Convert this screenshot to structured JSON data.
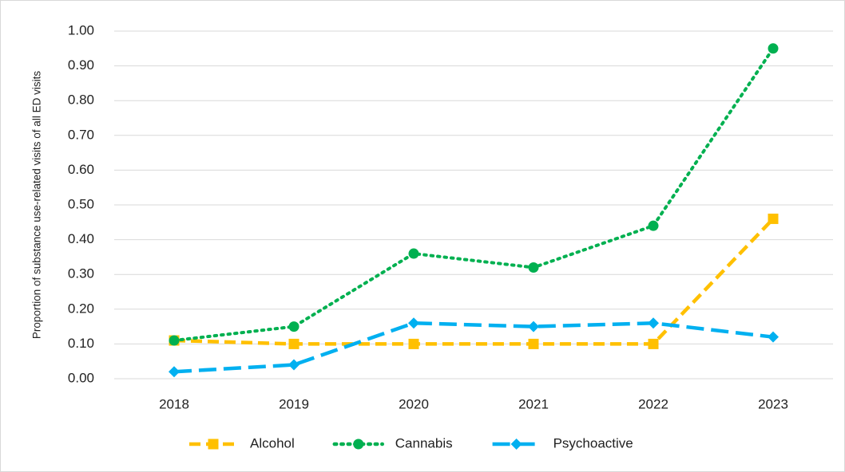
{
  "chart_data": {
    "type": "line",
    "y_label": "Proportion of substance use-related visits of all ED visits",
    "categories": [
      "2018",
      "2019",
      "2020",
      "2021",
      "2022",
      "2023"
    ],
    "series": [
      {
        "name": "Alcohol",
        "color": "#FFC000",
        "dash": "dashed",
        "marker": "square",
        "values": [
          0.11,
          0.1,
          0.1,
          0.1,
          0.1,
          0.46
        ]
      },
      {
        "name": "Cannabis",
        "color": "#00B050",
        "dash": "dotted",
        "marker": "circle",
        "values": [
          0.11,
          0.15,
          0.36,
          0.32,
          0.44,
          0.95
        ]
      },
      {
        "name": "Psychoactive",
        "color": "#00B0F0",
        "dash": "longdash",
        "marker": "diamond",
        "values": [
          0.02,
          0.04,
          0.16,
          0.15,
          0.16,
          0.12
        ]
      }
    ],
    "ylim": [
      0,
      1
    ],
    "yticks": [
      {
        "value": 0,
        "label": "0.00"
      },
      {
        "value": 0.1,
        "label": "0.10"
      },
      {
        "value": 0.2,
        "label": "0.20"
      },
      {
        "value": 0.3,
        "label": "0.30"
      },
      {
        "value": 0.4,
        "label": "0.40"
      },
      {
        "value": 0.5,
        "label": "0.50"
      },
      {
        "value": 0.6,
        "label": "0.60"
      },
      {
        "value": 0.7,
        "label": "0.70"
      },
      {
        "value": 0.8,
        "label": "0.80"
      },
      {
        "value": 0.9,
        "label": "0.90"
      },
      {
        "value": 1,
        "label": "1.00"
      }
    ],
    "grid": true,
    "legend": "bottom"
  }
}
